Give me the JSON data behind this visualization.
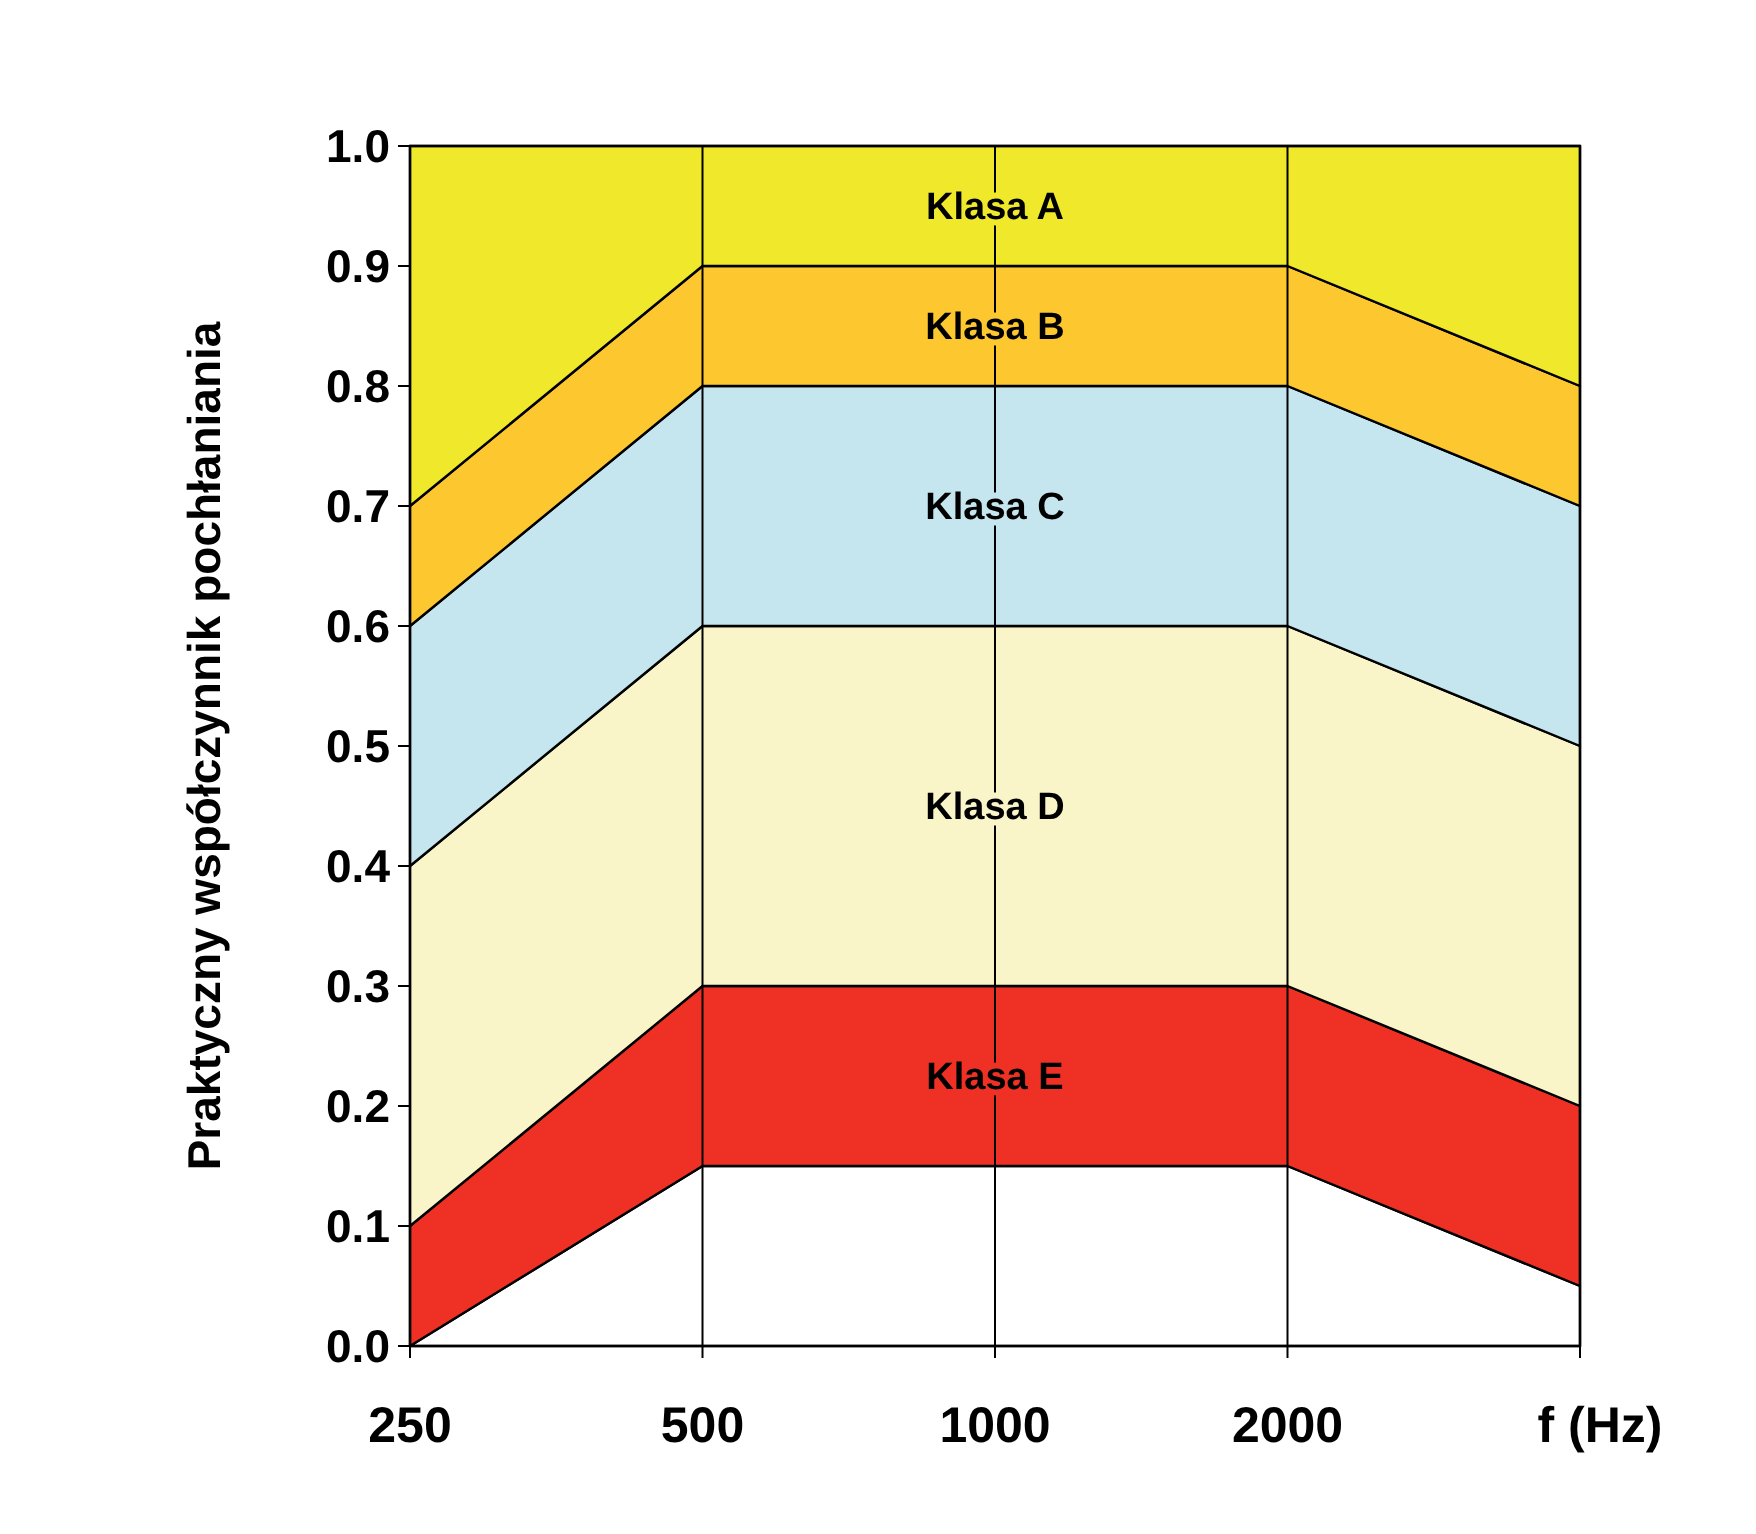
{
  "chart_data": {
    "type": "area",
    "stacked": true,
    "ylabel": "Praktyczny współczynnik pochłaniania",
    "xlabel": "f (Hz)",
    "categories": [
      "250",
      "500",
      "1000",
      "2000",
      null
    ],
    "ylim": [
      0,
      1
    ],
    "yticks": [
      {
        "value": 0,
        "label": "0.0"
      },
      {
        "value": 0.1,
        "label": "0.1"
      },
      {
        "value": 0.2,
        "label": "0.2"
      },
      {
        "value": 0.3,
        "label": "0.3"
      },
      {
        "value": 0.4,
        "label": "0.4"
      },
      {
        "value": 0.5,
        "label": "0.5"
      },
      {
        "value": 0.6,
        "label": "0.6"
      },
      {
        "value": 0.7,
        "label": "0.7"
      },
      {
        "value": 0.8,
        "label": "0.8"
      },
      {
        "value": 0.9,
        "label": "0.9"
      },
      {
        "value": 1,
        "label": "1.0"
      }
    ],
    "grid": "x",
    "series": [
      {
        "color": "#ffffff",
        "values": [
          0,
          0.15,
          0.15,
          0.15,
          0.05
        ]
      },
      {
        "name": "Klasa E",
        "color": "#ee3124",
        "values": [
          0.1,
          0.15,
          0.15,
          0.15,
          0.15
        ]
      },
      {
        "name": "Klasa D",
        "color": "#faf5c8",
        "values": [
          0.3,
          0.3,
          0.3,
          0.3,
          0.3
        ]
      },
      {
        "name": "Klasa C",
        "color": "#c5e6ef",
        "values": [
          0.2,
          0.2,
          0.2,
          0.2,
          0.2
        ]
      },
      {
        "name": "Klasa B",
        "color": "#fdc82f",
        "values": [
          0.1,
          0.1,
          0.1,
          0.1,
          0.1
        ]
      },
      {
        "name": "Klasa A",
        "color": "#f0e82a",
        "values": [
          0.3,
          0.1,
          0.1,
          0.1,
          0.2
        ]
      }
    ]
  }
}
